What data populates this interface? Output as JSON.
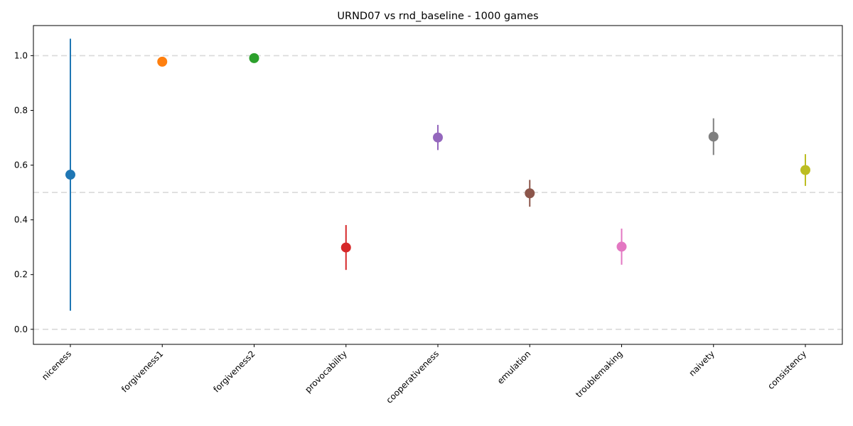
{
  "chart_data": {
    "type": "scatter",
    "title": "URND07 vs rnd_baseline - 1000 games",
    "xlabel": "",
    "ylabel": "",
    "categories": [
      "niceness",
      "forgiveness1",
      "forgiveness2",
      "provocability",
      "cooperativeness",
      "emulation",
      "troublemaking",
      "naivety",
      "consistency"
    ],
    "values": [
      0.565,
      0.978,
      0.991,
      0.299,
      0.701,
      0.497,
      0.302,
      0.704,
      0.582
    ],
    "errors": [
      0.497,
      0.0,
      0.0,
      0.082,
      0.046,
      0.049,
      0.066,
      0.067,
      0.058
    ],
    "colors": [
      "#1f77b4",
      "#ff7f0e",
      "#2ca02c",
      "#d62728",
      "#9467bd",
      "#8c564b",
      "#e377c2",
      "#7f7f7f",
      "#bcbd22"
    ],
    "reference_lines": [
      0.0,
      0.5,
      1.0
    ],
    "ylim": [
      -0.055,
      1.11
    ],
    "yticks": [
      0.0,
      0.2,
      0.4,
      0.6,
      0.8,
      1.0
    ],
    "ytick_labels": [
      "0.0",
      "0.2",
      "0.4",
      "0.6",
      "0.8",
      "1.0"
    ],
    "grid": false,
    "legend": "none"
  }
}
